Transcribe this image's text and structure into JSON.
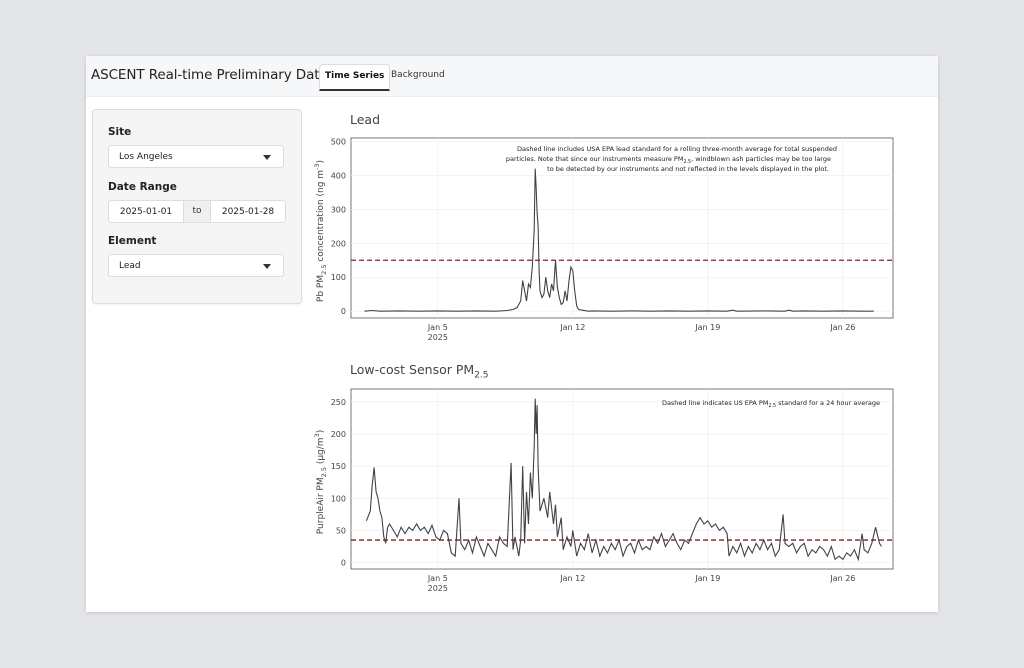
{
  "app": {
    "title": "ASCENT Real-time Preliminary Data",
    "tabs": [
      {
        "label": "Time Series",
        "active": true
      },
      {
        "label": "Background",
        "active": false
      }
    ]
  },
  "sidebar": {
    "site_label": "Site",
    "site_value": "Los Angeles",
    "date_range_label": "Date Range",
    "date_start": "2025-01-01",
    "date_sep": "to",
    "date_end": "2025-01-28",
    "element_label": "Element",
    "element_value": "Lead"
  },
  "plots": {
    "lead": {
      "title": "Lead",
      "ylabel_pre": "Pb PM",
      "ylabel_sub": "2.5",
      "ylabel_mid": " concentration (ng m",
      "ylabel_sup": "-3",
      "ylabel_post": ")",
      "note_l1": "Dashed line includes USA EPA lead standard for a rolling three-month average for total suspended",
      "note_l2_a": "particles. Note that since our instruments measure PM",
      "note_l2_sub": "2.5",
      "note_l2_b": ", windblown ash particles may be too large",
      "note_l3": "to be detected by our instruments and not reflected in the levels displayed in the plot."
    },
    "pm": {
      "title_pre": "Low-cost Sensor PM",
      "title_sub": "2.5",
      "ylabel_pre": "PurpleAir PM",
      "ylabel_sub": "2.5",
      "ylabel_mid": " (µg/m",
      "ylabel_sup": "3",
      "ylabel_post": ")",
      "note_a": "Dashed line indicates US EPA PM",
      "note_sub": "2.5",
      "note_b": " standard for a 24 hour average"
    }
  },
  "chart_data": [
    {
      "type": "line",
      "x_ticks": [
        "Jan 5",
        "Jan 12",
        "Jan 19",
        "Jan 26"
      ],
      "x_year": "2025",
      "y_ticks": [
        0,
        100,
        200,
        300,
        400,
        500
      ],
      "xlim": [
        0.5,
        28.6
      ],
      "ylim": [
        -20,
        510
      ],
      "reference_line": 150,
      "reference_color": "#8b1a1a",
      "line_color": "#3f4348",
      "points": [
        [
          1.2,
          0
        ],
        [
          1.6,
          2
        ],
        [
          2.0,
          0
        ],
        [
          3.0,
          1
        ],
        [
          4.0,
          0
        ],
        [
          5.0,
          1
        ],
        [
          6.0,
          0
        ],
        [
          7.0,
          1
        ],
        [
          8.0,
          0
        ],
        [
          8.6,
          2
        ],
        [
          8.9,
          5
        ],
        [
          9.1,
          10
        ],
        [
          9.3,
          30
        ],
        [
          9.4,
          90
        ],
        [
          9.5,
          60
        ],
        [
          9.6,
          30
        ],
        [
          9.7,
          80
        ],
        [
          9.8,
          70
        ],
        [
          9.9,
          130
        ],
        [
          10.0,
          240
        ],
        [
          10.05,
          420
        ],
        [
          10.1,
          360
        ],
        [
          10.15,
          290
        ],
        [
          10.2,
          250
        ],
        [
          10.25,
          120
        ],
        [
          10.3,
          60
        ],
        [
          10.4,
          40
        ],
        [
          10.5,
          50
        ],
        [
          10.6,
          100
        ],
        [
          10.7,
          60
        ],
        [
          10.8,
          40
        ],
        [
          10.9,
          80
        ],
        [
          11.0,
          60
        ],
        [
          11.1,
          150
        ],
        [
          11.2,
          70
        ],
        [
          11.3,
          40
        ],
        [
          11.4,
          20
        ],
        [
          11.5,
          25
        ],
        [
          11.6,
          60
        ],
        [
          11.7,
          30
        ],
        [
          11.8,
          90
        ],
        [
          11.9,
          130
        ],
        [
          12.0,
          120
        ],
        [
          12.1,
          60
        ],
        [
          12.2,
          15
        ],
        [
          12.3,
          5
        ],
        [
          12.5,
          3
        ],
        [
          12.8,
          0
        ],
        [
          13.0,
          1
        ],
        [
          14.0,
          0
        ],
        [
          15.0,
          1
        ],
        [
          16.0,
          0
        ],
        [
          17.0,
          1
        ],
        [
          18.0,
          0
        ],
        [
          19.0,
          1
        ],
        [
          20.0,
          0
        ],
        [
          20.3,
          3
        ],
        [
          20.5,
          0
        ],
        [
          22.0,
          1
        ],
        [
          23.0,
          0
        ],
        [
          23.2,
          3
        ],
        [
          23.4,
          0
        ],
        [
          24.0,
          1
        ],
        [
          25.0,
          0
        ],
        [
          26.0,
          1
        ],
        [
          27.0,
          0
        ],
        [
          27.6,
          0
        ]
      ]
    },
    {
      "type": "line",
      "x_ticks": [
        "Jan 5",
        "Jan 12",
        "Jan 19",
        "Jan 26"
      ],
      "x_year": "2025",
      "y_ticks": [
        0,
        50,
        100,
        150,
        200,
        250
      ],
      "xlim": [
        0.5,
        28.6
      ],
      "ylim": [
        -10,
        270
      ],
      "reference_line": 35,
      "reference_color": "#8b1a1a",
      "line_color": "#3f4348",
      "points": [
        [
          1.3,
          65
        ],
        [
          1.5,
          80
        ],
        [
          1.6,
          120
        ],
        [
          1.7,
          148
        ],
        [
          1.8,
          110
        ],
        [
          1.9,
          100
        ],
        [
          2.0,
          80
        ],
        [
          2.1,
          70
        ],
        [
          2.2,
          40
        ],
        [
          2.3,
          30
        ],
        [
          2.4,
          55
        ],
        [
          2.5,
          60
        ],
        [
          2.7,
          50
        ],
        [
          2.9,
          40
        ],
        [
          3.1,
          55
        ],
        [
          3.3,
          45
        ],
        [
          3.5,
          55
        ],
        [
          3.7,
          50
        ],
        [
          3.9,
          60
        ],
        [
          4.1,
          50
        ],
        [
          4.3,
          55
        ],
        [
          4.5,
          45
        ],
        [
          4.7,
          58
        ],
        [
          4.9,
          40
        ],
        [
          5.1,
          35
        ],
        [
          5.3,
          50
        ],
        [
          5.5,
          45
        ],
        [
          5.7,
          15
        ],
        [
          5.9,
          10
        ],
        [
          6.0,
          55
        ],
        [
          6.1,
          100
        ],
        [
          6.2,
          30
        ],
        [
          6.4,
          20
        ],
        [
          6.6,
          35
        ],
        [
          6.8,
          15
        ],
        [
          7.0,
          40
        ],
        [
          7.2,
          25
        ],
        [
          7.4,
          10
        ],
        [
          7.6,
          30
        ],
        [
          7.8,
          20
        ],
        [
          8.0,
          10
        ],
        [
          8.2,
          40
        ],
        [
          8.4,
          30
        ],
        [
          8.6,
          25
        ],
        [
          8.8,
          155
        ],
        [
          8.9,
          20
        ],
        [
          9.0,
          40
        ],
        [
          9.2,
          10
        ],
        [
          9.3,
          35
        ],
        [
          9.4,
          150
        ],
        [
          9.5,
          30
        ],
        [
          9.6,
          110
        ],
        [
          9.7,
          60
        ],
        [
          9.8,
          140
        ],
        [
          9.9,
          100
        ],
        [
          10.0,
          180
        ],
        [
          10.05,
          255
        ],
        [
          10.1,
          200
        ],
        [
          10.15,
          245
        ],
        [
          10.2,
          150
        ],
        [
          10.3,
          80
        ],
        [
          10.5,
          100
        ],
        [
          10.7,
          70
        ],
        [
          10.8,
          110
        ],
        [
          11.0,
          60
        ],
        [
          11.1,
          90
        ],
        [
          11.2,
          40
        ],
        [
          11.4,
          70
        ],
        [
          11.5,
          20
        ],
        [
          11.7,
          40
        ],
        [
          11.9,
          25
        ],
        [
          12.0,
          50
        ],
        [
          12.2,
          10
        ],
        [
          12.4,
          30
        ],
        [
          12.6,
          20
        ],
        [
          12.8,
          45
        ],
        [
          13.0,
          15
        ],
        [
          13.2,
          35
        ],
        [
          13.4,
          10
        ],
        [
          13.6,
          25
        ],
        [
          13.8,
          15
        ],
        [
          14.0,
          30
        ],
        [
          14.2,
          20
        ],
        [
          14.4,
          35
        ],
        [
          14.6,
          10
        ],
        [
          14.8,
          25
        ],
        [
          15.0,
          30
        ],
        [
          15.2,
          15
        ],
        [
          15.4,
          35
        ],
        [
          15.6,
          20
        ],
        [
          15.8,
          25
        ],
        [
          16.0,
          20
        ],
        [
          16.2,
          40
        ],
        [
          16.4,
          30
        ],
        [
          16.6,
          45
        ],
        [
          16.8,
          25
        ],
        [
          17.0,
          35
        ],
        [
          17.2,
          45
        ],
        [
          17.4,
          30
        ],
        [
          17.6,
          20
        ],
        [
          17.8,
          35
        ],
        [
          18.0,
          30
        ],
        [
          18.2,
          45
        ],
        [
          18.4,
          60
        ],
        [
          18.6,
          70
        ],
        [
          18.8,
          60
        ],
        [
          19.0,
          65
        ],
        [
          19.2,
          55
        ],
        [
          19.4,
          60
        ],
        [
          19.6,
          50
        ],
        [
          19.8,
          55
        ],
        [
          20.0,
          45
        ],
        [
          20.1,
          10
        ],
        [
          20.3,
          25
        ],
        [
          20.5,
          15
        ],
        [
          20.7,
          30
        ],
        [
          20.9,
          10
        ],
        [
          21.1,
          25
        ],
        [
          21.3,
          15
        ],
        [
          21.5,
          30
        ],
        [
          21.7,
          20
        ],
        [
          21.9,
          35
        ],
        [
          22.1,
          20
        ],
        [
          22.3,
          30
        ],
        [
          22.5,
          10
        ],
        [
          22.7,
          20
        ],
        [
          22.9,
          75
        ],
        [
          23.0,
          30
        ],
        [
          23.2,
          25
        ],
        [
          23.4,
          30
        ],
        [
          23.6,
          15
        ],
        [
          23.8,
          25
        ],
        [
          24.0,
          30
        ],
        [
          24.2,
          10
        ],
        [
          24.4,
          20
        ],
        [
          24.6,
          15
        ],
        [
          24.8,
          25
        ],
        [
          25.0,
          20
        ],
        [
          25.2,
          10
        ],
        [
          25.4,
          25
        ],
        [
          25.6,
          5
        ],
        [
          25.8,
          10
        ],
        [
          26.0,
          5
        ],
        [
          26.2,
          15
        ],
        [
          26.4,
          10
        ],
        [
          26.6,
          20
        ],
        [
          26.8,
          5
        ],
        [
          27.0,
          45
        ],
        [
          27.1,
          20
        ],
        [
          27.3,
          15
        ],
        [
          27.5,
          30
        ],
        [
          27.7,
          55
        ],
        [
          27.9,
          30
        ],
        [
          28.0,
          25
        ]
      ]
    }
  ]
}
